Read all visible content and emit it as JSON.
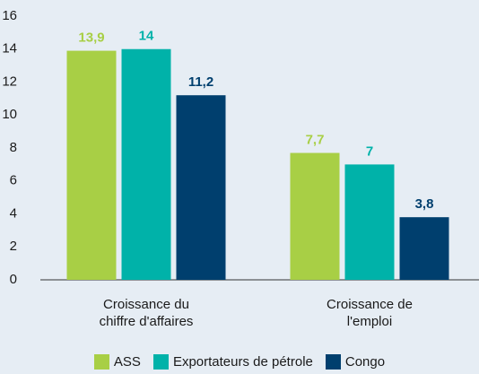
{
  "chart_data": {
    "type": "bar",
    "categories": [
      "Croissance du\nchiffre d'affaires",
      "Croissance de\nl'emploi"
    ],
    "series": [
      {
        "name": "ASS",
        "color": "#a8cf45",
        "values": [
          13.9,
          7.7
        ],
        "value_labels": [
          "13,9",
          "7,7"
        ]
      },
      {
        "name": "Exportateurs de pétrole",
        "color": "#00b2a9",
        "values": [
          14,
          7
        ],
        "value_labels": [
          "14",
          "7"
        ]
      },
      {
        "name": "Congo",
        "color": "#003f6e",
        "values": [
          11.2,
          3.8
        ],
        "value_labels": [
          "11,2",
          "3,8"
        ]
      }
    ],
    "ylim": [
      0,
      16
    ],
    "yticks": [
      0,
      2,
      4,
      6,
      8,
      10,
      12,
      14,
      16
    ],
    "grid": false,
    "legend": "bottom"
  }
}
